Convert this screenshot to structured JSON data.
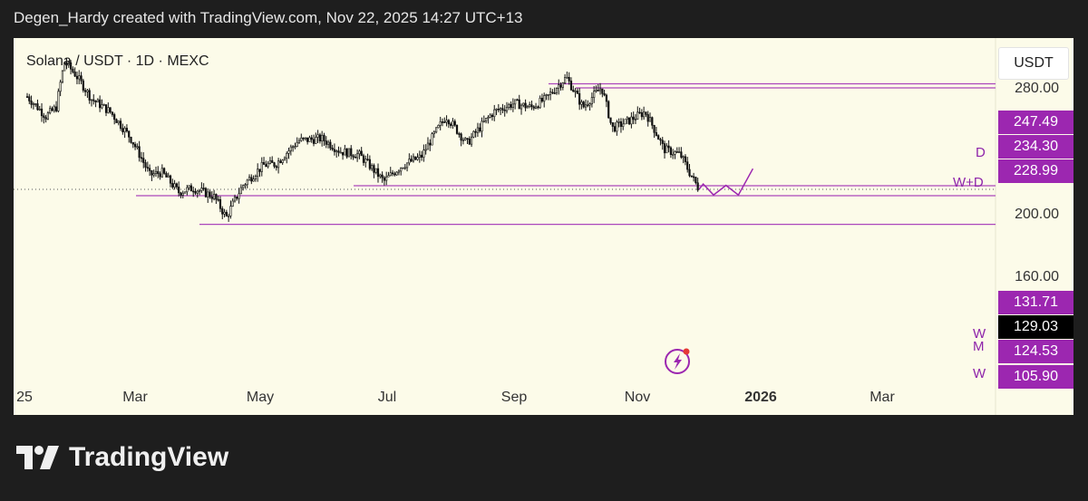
{
  "header": {
    "text": "Degen_Hardy created with TradingView.com, Nov 22, 2025 14:27 UTC+13"
  },
  "chart_data": {
    "type": "candlestick",
    "title": "Solana / USDT · 1D · MEXC",
    "currency": "USDT",
    "y_ticks": [
      "280.00",
      "200.00",
      "160.00"
    ],
    "x_ticks": [
      "25",
      "Mar",
      "May",
      "Jul",
      "Sep",
      "Nov",
      "2026",
      "Mar"
    ],
    "price_labels": [
      {
        "value": "247.49",
        "style": "purple"
      },
      {
        "value": "234.30",
        "style": "purple"
      },
      {
        "value": "228.99",
        "style": "purple"
      },
      {
        "value": "131.71",
        "style": "purple"
      },
      {
        "value": "129.03",
        "style": "black"
      },
      {
        "value": "124.53",
        "style": "purple"
      },
      {
        "value": "105.90",
        "style": "purple"
      }
    ],
    "level_markers": [
      "D",
      "W+D",
      "W",
      "M",
      "W"
    ],
    "horizontal_levels": [
      234.3,
      228.99,
      131.71,
      124.53,
      105.9
    ],
    "last_price": 129.03,
    "price_path": [
      [
        "2025-01-01",
        218
      ],
      [
        "2025-01-10",
        195
      ],
      [
        "2025-01-15",
        205
      ],
      [
        "2025-01-19",
        265
      ],
      [
        "2025-01-24",
        248
      ],
      [
        "2025-02-01",
        215
      ],
      [
        "2025-02-10",
        200
      ],
      [
        "2025-02-20",
        172
      ],
      [
        "2025-03-01",
        140
      ],
      [
        "2025-03-07",
        142
      ],
      [
        "2025-03-15",
        127
      ],
      [
        "2025-03-22",
        130
      ],
      [
        "2025-04-01",
        124
      ],
      [
        "2025-04-07",
        110
      ],
      [
        "2025-04-15",
        132
      ],
      [
        "2025-04-25",
        148
      ],
      [
        "2025-05-01",
        149
      ],
      [
        "2025-05-12",
        170
      ],
      [
        "2025-05-23",
        172
      ],
      [
        "2025-06-01",
        160
      ],
      [
        "2025-06-10",
        157
      ],
      [
        "2025-06-22",
        135
      ],
      [
        "2025-07-01",
        148
      ],
      [
        "2025-07-10",
        155
      ],
      [
        "2025-07-22",
        195
      ],
      [
        "2025-08-01",
        167
      ],
      [
        "2025-08-14",
        200
      ],
      [
        "2025-08-24",
        210
      ],
      [
        "2025-09-01",
        205
      ],
      [
        "2025-09-08",
        215
      ],
      [
        "2025-09-18",
        243
      ],
      [
        "2025-09-26",
        205
      ],
      [
        "2025-10-05",
        230
      ],
      [
        "2025-10-10",
        182
      ],
      [
        "2025-10-18",
        190
      ],
      [
        "2025-10-26",
        200
      ],
      [
        "2025-11-04",
        162
      ],
      [
        "2025-11-12",
        157
      ],
      [
        "2025-11-17",
        140
      ],
      [
        "2025-11-21",
        129
      ]
    ],
    "projection": [
      [
        "2025-11-23",
        133
      ],
      [
        "2025-11-28",
        125
      ],
      [
        "2025-12-04",
        132
      ],
      [
        "2025-12-10",
        125
      ],
      [
        "2025-12-17",
        145
      ]
    ],
    "colors": {
      "accent": "#9c27b0",
      "level_line": "#ab47bc",
      "candle": "#111111",
      "background": "#fcfbe9"
    }
  },
  "brand": {
    "name": "TradingView"
  }
}
